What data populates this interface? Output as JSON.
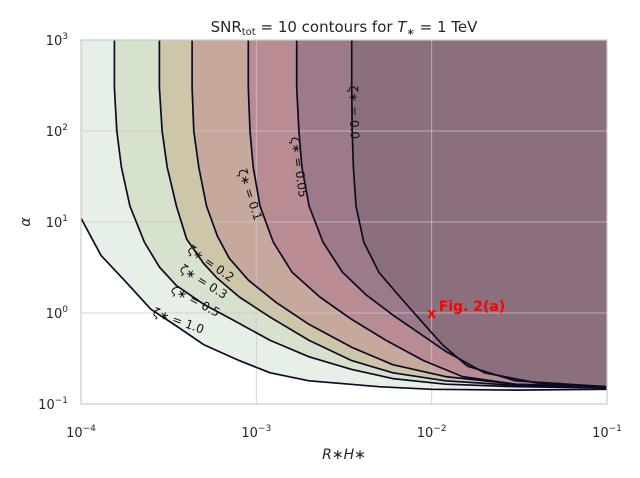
{
  "chart_data": {
    "type": "area",
    "title_parts": [
      "SNR",
      "tot",
      " = 10 contours for ",
      "T",
      "∗",
      " = 1 TeV"
    ],
    "xlabel": "R∗H∗",
    "ylabel": "α",
    "xscale": "log",
    "yscale": "log",
    "xlim": [
      0.0001,
      0.1
    ],
    "ylim": [
      0.1,
      1000
    ],
    "grid": true,
    "x_ticks": [
      {
        "value": 0.0001,
        "base": "10",
        "exp": "−4"
      },
      {
        "value": 0.001,
        "base": "10",
        "exp": "−3"
      },
      {
        "value": 0.01,
        "base": "10",
        "exp": "−2"
      },
      {
        "value": 0.1,
        "base": "10",
        "exp": "−1"
      }
    ],
    "y_ticks": [
      {
        "value": 0.1,
        "base": "10",
        "exp": "−1"
      },
      {
        "value": 1,
        "base": "10",
        "exp": "0"
      },
      {
        "value": 10,
        "base": "10",
        "exp": "1"
      },
      {
        "value": 100,
        "base": "10",
        "exp": "2"
      },
      {
        "value": 1000,
        "base": "10",
        "exp": "3"
      }
    ],
    "contour_line_color": "#0b0b26",
    "series": [
      {
        "zeta": 1.0,
        "label": "ζ∗ = 1.0",
        "fill": "#e6f0e6",
        "points": [
          [
            0.0001,
            11
          ],
          [
            0.00013,
            4.3
          ],
          [
            0.00018,
            2.2
          ],
          [
            0.00025,
            1.1
          ],
          [
            0.00035,
            0.72
          ],
          [
            0.0005,
            0.45
          ],
          [
            0.0008,
            0.3
          ],
          [
            0.0012,
            0.22
          ],
          [
            0.002,
            0.18
          ],
          [
            0.005,
            0.155
          ],
          [
            0.01,
            0.145
          ],
          [
            0.03,
            0.142
          ],
          [
            0.1,
            0.145
          ]
        ],
        "label_at": [
          0.00036,
          0.82
        ],
        "label_angle": 20
      },
      {
        "zeta": 0.5,
        "label": "ζ∗ = 0.5",
        "fill": "#d7e2cc",
        "points": [
          [
            0.000155,
            1000
          ],
          [
            0.000155,
            300
          ],
          [
            0.00016,
            100
          ],
          [
            0.00017,
            40
          ],
          [
            0.00019,
            15
          ],
          [
            0.00023,
            6
          ],
          [
            0.00028,
            3.2
          ],
          [
            0.00035,
            2.0
          ],
          [
            0.0005,
            1.25
          ],
          [
            0.00075,
            0.82
          ],
          [
            0.0012,
            0.5
          ],
          [
            0.002,
            0.33
          ],
          [
            0.0035,
            0.24
          ],
          [
            0.006,
            0.19
          ],
          [
            0.012,
            0.165
          ],
          [
            0.03,
            0.155
          ],
          [
            0.1,
            0.15
          ]
        ],
        "label_at": [
          0.00045,
          1.35
        ],
        "label_angle": 28
      },
      {
        "zeta": 0.3,
        "label": "ζ∗ = 0.3",
        "fill": "#cec6a8",
        "points": [
          [
            0.00028,
            1000
          ],
          [
            0.00028,
            300
          ],
          [
            0.00029,
            100
          ],
          [
            0.00031,
            40
          ],
          [
            0.00035,
            15
          ],
          [
            0.0004,
            6.5
          ],
          [
            0.0005,
            3.5
          ],
          [
            0.0006,
            2.4
          ],
          [
            0.0008,
            1.5
          ],
          [
            0.0012,
            0.9
          ],
          [
            0.002,
            0.5
          ],
          [
            0.0035,
            0.3
          ],
          [
            0.006,
            0.22
          ],
          [
            0.012,
            0.18
          ],
          [
            0.03,
            0.16
          ],
          [
            0.1,
            0.152
          ]
        ],
        "label_at": [
          0.0005,
          2.2
        ],
        "label_angle": 32
      },
      {
        "zeta": 0.2,
        "label": "ζ∗ = 0.2",
        "fill": "#c6a89c",
        "points": [
          [
            0.00043,
            1000
          ],
          [
            0.00043,
            300
          ],
          [
            0.00044,
            100
          ],
          [
            0.00047,
            40
          ],
          [
            0.00052,
            15
          ],
          [
            0.0006,
            7
          ],
          [
            0.0007,
            4
          ],
          [
            0.0009,
            2.3
          ],
          [
            0.0013,
            1.3
          ],
          [
            0.002,
            0.75
          ],
          [
            0.0035,
            0.42
          ],
          [
            0.006,
            0.27
          ],
          [
            0.012,
            0.2
          ],
          [
            0.03,
            0.165
          ],
          [
            0.1,
            0.155
          ]
        ],
        "label_at": [
          0.00055,
          3.5
        ],
        "label_angle": 35
      },
      {
        "zeta": 0.1,
        "label": "ζ∗ = 0.1",
        "fill": "#b88c92",
        "points": [
          [
            0.0009,
            1000
          ],
          [
            0.0009,
            300
          ],
          [
            0.00092,
            100
          ],
          [
            0.00096,
            40
          ],
          [
            0.00105,
            15
          ],
          [
            0.00125,
            6
          ],
          [
            0.0016,
            2.8
          ],
          [
            0.0023,
            1.5
          ],
          [
            0.0035,
            0.85
          ],
          [
            0.0055,
            0.5
          ],
          [
            0.009,
            0.3
          ],
          [
            0.015,
            0.2
          ],
          [
            0.03,
            0.165
          ],
          [
            0.1,
            0.155
          ]
        ],
        "label_at": [
          0.00092,
          20
        ],
        "label_angle": 72
      },
      {
        "zeta": 0.05,
        "label": "ζ∗ = 0.05",
        "fill": "#9c7a8a",
        "points": [
          [
            0.0017,
            1000
          ],
          [
            0.0017,
            300
          ],
          [
            0.00175,
            100
          ],
          [
            0.00182,
            40
          ],
          [
            0.002,
            15
          ],
          [
            0.0024,
            6
          ],
          [
            0.0031,
            2.8
          ],
          [
            0.0042,
            1.6
          ],
          [
            0.006,
            0.95
          ],
          [
            0.0085,
            0.6
          ],
          [
            0.012,
            0.38
          ],
          [
            0.02,
            0.22
          ],
          [
            0.04,
            0.17
          ],
          [
            0.1,
            0.155
          ]
        ],
        "label_at": [
          0.00175,
          40
        ],
        "label_angle": 82
      },
      {
        "zeta": 0.0,
        "label": "ζ∗ = 0.0",
        "fill": "#8b6f7d",
        "points": [
          [
            0.0035,
            1000
          ],
          [
            0.0035,
            300
          ],
          [
            0.00352,
            100
          ],
          [
            0.00358,
            40
          ],
          [
            0.0037,
            15
          ],
          [
            0.0041,
            6
          ],
          [
            0.005,
            2.8
          ],
          [
            0.0066,
            1.5
          ],
          [
            0.0088,
            0.8
          ],
          [
            0.0115,
            0.45
          ],
          [
            0.016,
            0.26
          ],
          [
            0.03,
            0.18
          ],
          [
            0.1,
            0.155
          ]
        ],
        "label_at": [
          0.0036,
          160
        ],
        "label_angle": 88
      }
    ],
    "annotations": [
      {
        "x": 0.01,
        "y": 1.0,
        "marker": "x",
        "text": "Fig. 2(a)",
        "color": "#ff0000"
      }
    ]
  }
}
